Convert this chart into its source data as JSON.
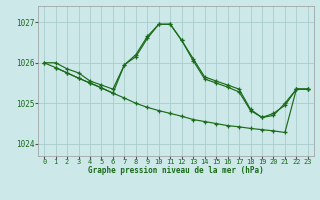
{
  "title": "Graphe pression niveau de la mer (hPa)",
  "background_color": "#cde8e8",
  "grid_color": "#aacccc",
  "line_color": "#1a6b1a",
  "xlim": [
    -0.5,
    23.5
  ],
  "ylim": [
    1023.7,
    1027.4
  ],
  "yticks": [
    1024,
    1025,
    1026,
    1027
  ],
  "xticks": [
    0,
    1,
    2,
    3,
    4,
    5,
    6,
    7,
    8,
    9,
    10,
    11,
    12,
    13,
    14,
    15,
    16,
    17,
    18,
    19,
    20,
    21,
    22,
    23
  ],
  "series1": [
    [
      0,
      1026.0
    ],
    [
      1,
      1026.0
    ],
    [
      2,
      1025.85
    ],
    [
      3,
      1025.75
    ],
    [
      4,
      1025.55
    ],
    [
      5,
      1025.45
    ],
    [
      6,
      1025.35
    ],
    [
      7,
      1025.95
    ],
    [
      8,
      1026.15
    ],
    [
      9,
      1026.6
    ],
    [
      10,
      1026.95
    ],
    [
      11,
      1026.95
    ],
    [
      12,
      1026.55
    ],
    [
      13,
      1026.1
    ],
    [
      14,
      1025.65
    ],
    [
      15,
      1025.55
    ],
    [
      16,
      1025.45
    ],
    [
      17,
      1025.35
    ],
    [
      18,
      1024.85
    ],
    [
      19,
      1024.65
    ],
    [
      20,
      1024.75
    ],
    [
      21,
      1024.95
    ],
    [
      22,
      1025.35
    ],
    [
      23,
      1025.35
    ]
  ],
  "series2": [
    [
      0,
      1026.0
    ],
    [
      1,
      1025.88
    ],
    [
      2,
      1025.75
    ],
    [
      3,
      1025.62
    ],
    [
      4,
      1025.5
    ],
    [
      5,
      1025.38
    ],
    [
      6,
      1025.25
    ],
    [
      7,
      1025.13
    ],
    [
      8,
      1025.0
    ],
    [
      9,
      1024.9
    ],
    [
      10,
      1024.82
    ],
    [
      11,
      1024.75
    ],
    [
      12,
      1024.68
    ],
    [
      13,
      1024.6
    ],
    [
      14,
      1024.55
    ],
    [
      15,
      1024.5
    ],
    [
      16,
      1024.45
    ],
    [
      17,
      1024.42
    ],
    [
      18,
      1024.38
    ],
    [
      19,
      1024.35
    ],
    [
      20,
      1024.32
    ],
    [
      21,
      1024.28
    ],
    [
      22,
      1025.35
    ],
    [
      23,
      1025.35
    ]
  ],
  "series3": [
    [
      1,
      1025.88
    ],
    [
      2,
      1025.75
    ],
    [
      3,
      1025.62
    ],
    [
      4,
      1025.5
    ],
    [
      5,
      1025.38
    ],
    [
      6,
      1025.25
    ],
    [
      7,
      1025.95
    ],
    [
      8,
      1026.2
    ],
    [
      9,
      1026.65
    ],
    [
      10,
      1026.95
    ],
    [
      11,
      1026.95
    ],
    [
      12,
      1026.55
    ],
    [
      13,
      1026.05
    ],
    [
      14,
      1025.6
    ],
    [
      15,
      1025.5
    ],
    [
      16,
      1025.4
    ],
    [
      17,
      1025.28
    ],
    [
      18,
      1024.82
    ],
    [
      19,
      1024.65
    ],
    [
      20,
      1024.7
    ],
    [
      21,
      1025.0
    ],
    [
      22,
      1025.35
    ],
    [
      23,
      1025.35
    ]
  ]
}
